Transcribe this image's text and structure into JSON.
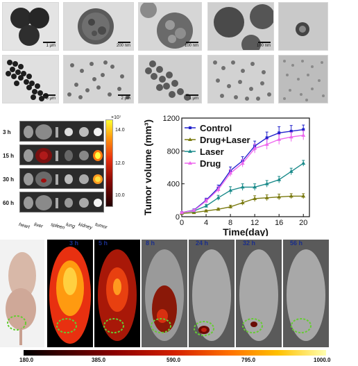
{
  "tem": {
    "top_row_scales": [
      "1 μm",
      "200 nm",
      "100 nm",
      "100 nm",
      ""
    ],
    "bottom_row_scales": [
      "5 μm",
      "2 μm",
      "1 μm",
      "",
      ""
    ]
  },
  "organ_imaging": {
    "times": [
      "3 h",
      "15 h",
      "30 h",
      "60 h"
    ],
    "organs": [
      "heart",
      "liver",
      "spleen",
      "lung",
      "kidney",
      "tumor"
    ],
    "colorbar_exponent": "×10⁷",
    "colorbar_ticks": [
      "14.0",
      "12.0",
      "10.0"
    ]
  },
  "chart_data": {
    "type": "line",
    "xlabel": "Time(day)",
    "ylabel": "Tumor volume (mm³)",
    "xlim": [
      0,
      21
    ],
    "ylim": [
      0,
      1200
    ],
    "xticks": [
      0,
      4,
      8,
      12,
      16,
      20
    ],
    "yticks": [
      0,
      400,
      800,
      1200
    ],
    "legend_position": "top-left",
    "x": [
      0,
      2,
      4,
      6,
      8,
      10,
      12,
      14,
      16,
      18,
      20
    ],
    "series": [
      {
        "name": "Control",
        "color": "#2222cc",
        "marker": "square",
        "values": [
          50,
          80,
          200,
          350,
          560,
          680,
          860,
          960,
          1020,
          1040,
          1060
        ],
        "errors": [
          10,
          15,
          25,
          35,
          45,
          50,
          60,
          70,
          75,
          70,
          55
        ]
      },
      {
        "name": "Drug+Laser",
        "color": "#7a7a10",
        "marker": "triangle",
        "values": [
          40,
          50,
          70,
          90,
          120,
          170,
          220,
          230,
          240,
          250,
          250
        ],
        "errors": [
          8,
          10,
          12,
          15,
          20,
          30,
          35,
          35,
          35,
          30,
          30
        ]
      },
      {
        "name": "Laser",
        "color": "#1a8a8a",
        "marker": "triangle",
        "values": [
          50,
          70,
          130,
          230,
          320,
          360,
          360,
          400,
          450,
          550,
          650
        ],
        "errors": [
          10,
          15,
          20,
          30,
          45,
          40,
          40,
          40,
          40,
          40,
          35
        ]
      },
      {
        "name": "Drug",
        "color": "#ee66ee",
        "marker": "triangle",
        "values": [
          50,
          75,
          190,
          330,
          530,
          650,
          830,
          880,
          940,
          970,
          990
        ],
        "errors": [
          10,
          15,
          25,
          35,
          40,
          45,
          55,
          60,
          60,
          55,
          55
        ]
      }
    ]
  },
  "vivo": {
    "times": [
      "3 h",
      "5 h",
      "8 h",
      "24 h",
      "32 h",
      "56 h"
    ],
    "colorbar_labels": [
      "180.0",
      "385.0",
      "590.0",
      "795.0",
      "1000.0"
    ]
  }
}
